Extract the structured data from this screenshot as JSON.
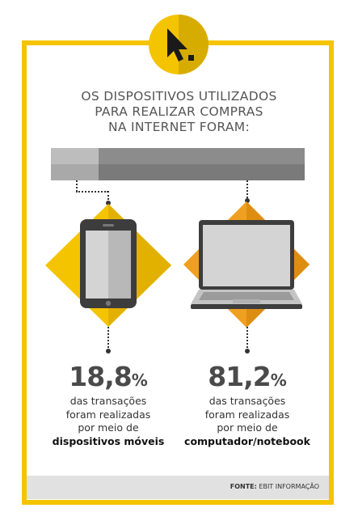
{
  "title_lines": [
    "OS DISPOSITIVOS UTILIZADOS",
    "PARA REALIZAR COMPRAS",
    "NA INTERNET FORAM:"
  ],
  "split": {
    "mobile_share": 0.188,
    "notebook_share": 0.812
  },
  "colors": {
    "frame": "#f5c400",
    "mobile_diamond": "#f5c400",
    "notebook_diamond": "#f0a020",
    "bar_light": "#bdbdbd",
    "bar_dark": "#8c8c8c",
    "footer_bg": "#e1e1e1"
  },
  "mobile": {
    "icon": "tablet-icon",
    "percent_value": "18,8",
    "percent_unit": "%",
    "desc_lines": [
      "das transações",
      "foram realizadas",
      "por meio de"
    ],
    "desc_emphasis": "dispositivos móveis"
  },
  "notebook": {
    "icon": "laptop-icon",
    "percent_value": "81,2",
    "percent_unit": "%",
    "desc_lines": [
      "das transações",
      "foram realizadas",
      "por meio de"
    ],
    "desc_emphasis": "computador/notebook"
  },
  "badge_icon": "cursor-icon",
  "footer": {
    "label": "FONTE:",
    "text": "EBIT INFORMAÇÃO"
  }
}
